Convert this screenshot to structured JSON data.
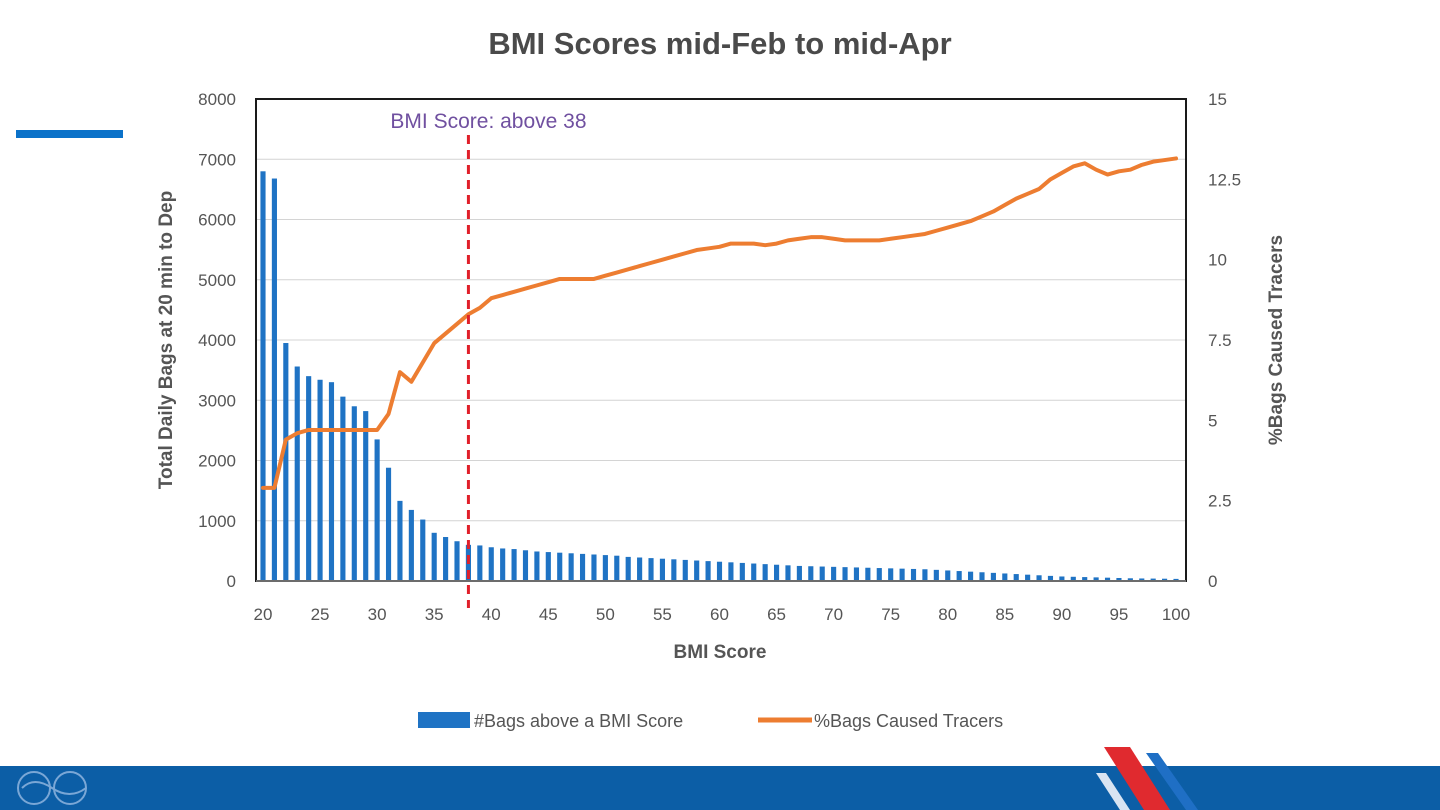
{
  "colors": {
    "bars": "#1f73c4",
    "line": "#ed7d31",
    "threshold": "#e0202a",
    "annotation": "#7050a0",
    "footer": "#0c5ea6",
    "accent": "#0b72c9"
  },
  "chart_data": {
    "type": "bar",
    "title": "BMI Scores mid-Feb to mid-Apr",
    "xlabel": "BMI Score",
    "ylabel": "Total Daily Bags at 20 min to Dep",
    "y2label": "%Bags Caused Tracers",
    "x": [
      20,
      21,
      22,
      23,
      24,
      25,
      26,
      27,
      28,
      29,
      30,
      31,
      32,
      33,
      34,
      35,
      36,
      37,
      38,
      39,
      40,
      41,
      42,
      43,
      44,
      45,
      46,
      47,
      48,
      49,
      50,
      51,
      52,
      53,
      54,
      55,
      56,
      57,
      58,
      59,
      60,
      61,
      62,
      63,
      64,
      65,
      66,
      67,
      68,
      69,
      70,
      71,
      72,
      73,
      74,
      75,
      76,
      77,
      78,
      79,
      80,
      81,
      82,
      83,
      84,
      85,
      86,
      87,
      88,
      89,
      90,
      91,
      92,
      93,
      94,
      95,
      96,
      97,
      98,
      99,
      100
    ],
    "xlim": [
      20,
      100
    ],
    "xticks": [
      "20",
      "25",
      "30",
      "35",
      "40",
      "45",
      "50",
      "55",
      "60",
      "65",
      "70",
      "75",
      "80",
      "85",
      "90",
      "95",
      "100"
    ],
    "ylim": [
      0,
      8000
    ],
    "yticks": [
      "0",
      "1000",
      "2000",
      "3000",
      "4000",
      "5000",
      "6000",
      "7000",
      "8000"
    ],
    "y2lim": [
      0,
      15
    ],
    "y2ticks": [
      "0",
      "2.5",
      "5",
      "7.5",
      "10",
      "12.5",
      "15"
    ],
    "grid": true,
    "legend": "bottom",
    "annotation": {
      "text": "BMI Score: above 38",
      "x": 38
    },
    "series": [
      {
        "name": "#Bags above a BMI Score",
        "type": "bar",
        "axis": "left",
        "values": [
          6800,
          6680,
          3950,
          3560,
          3400,
          3340,
          3300,
          3060,
          2900,
          2820,
          2350,
          1880,
          1330,
          1180,
          1020,
          800,
          730,
          660,
          600,
          590,
          560,
          540,
          530,
          510,
          490,
          480,
          470,
          460,
          450,
          440,
          430,
          420,
          400,
          390,
          380,
          370,
          360,
          350,
          340,
          330,
          320,
          310,
          300,
          290,
          280,
          270,
          260,
          250,
          245,
          240,
          235,
          230,
          225,
          220,
          215,
          210,
          205,
          200,
          195,
          185,
          175,
          165,
          155,
          145,
          135,
          125,
          115,
          105,
          95,
          85,
          75,
          70,
          65,
          60,
          55,
          50,
          45,
          42,
          40,
          38,
          35
        ]
      },
      {
        "name": "%Bags Caused Tracers",
        "type": "line",
        "axis": "right",
        "values": [
          2.9,
          2.9,
          4.4,
          4.6,
          4.7,
          4.7,
          4.7,
          4.7,
          4.7,
          4.7,
          4.7,
          5.2,
          6.5,
          6.2,
          6.8,
          7.4,
          7.7,
          8.0,
          8.3,
          8.5,
          8.8,
          8.9,
          9.0,
          9.1,
          9.2,
          9.3,
          9.4,
          9.4,
          9.4,
          9.4,
          9.5,
          9.6,
          9.7,
          9.8,
          9.9,
          10.0,
          10.1,
          10.2,
          10.3,
          10.35,
          10.4,
          10.5,
          10.5,
          10.5,
          10.45,
          10.5,
          10.6,
          10.65,
          10.7,
          10.7,
          10.65,
          10.6,
          10.6,
          10.6,
          10.6,
          10.65,
          10.7,
          10.75,
          10.8,
          10.9,
          11.0,
          11.1,
          11.2,
          11.35,
          11.5,
          11.7,
          11.9,
          12.05,
          12.2,
          12.5,
          12.7,
          12.9,
          13.0,
          12.8,
          12.65,
          12.75,
          12.8,
          12.95,
          13.05,
          13.1,
          13.15
        ]
      }
    ]
  }
}
